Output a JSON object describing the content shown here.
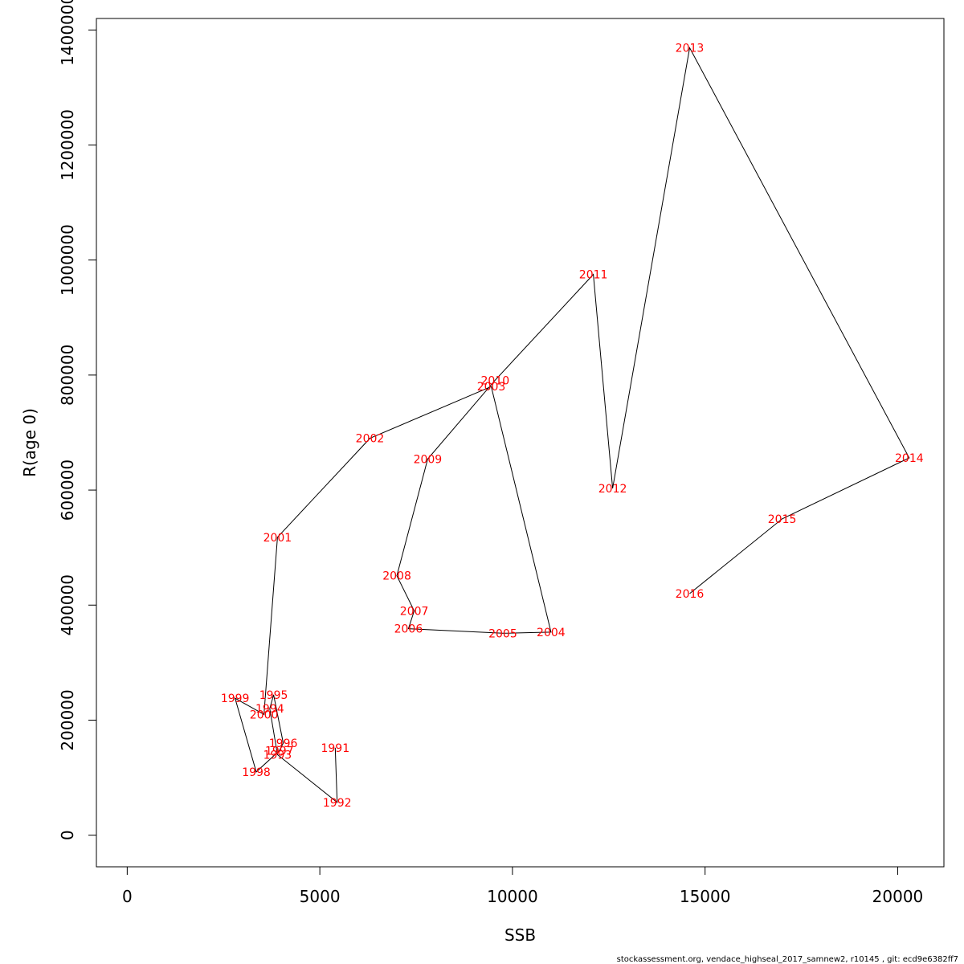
{
  "chart_data": {
    "type": "scatter",
    "xlabel": "SSB",
    "ylabel": "R(age 0)",
    "xlim": [
      -800,
      21200
    ],
    "ylim": [
      -55000,
      1420000
    ],
    "x_ticks": [
      0,
      5000,
      10000,
      15000,
      20000
    ],
    "y_ticks": [
      0,
      200000,
      400000,
      600000,
      800000,
      1000000,
      1200000,
      1400000
    ],
    "grid": false,
    "line_color": "#000000",
    "label_color": "#ff0000",
    "points": [
      {
        "year": "1991",
        "x": 5400,
        "y": 152000
      },
      {
        "year": "1992",
        "x": 5450,
        "y": 57000
      },
      {
        "year": "1993",
        "x": 3900,
        "y": 140000
      },
      {
        "year": "1994",
        "x": 3700,
        "y": 220000
      },
      {
        "year": "1995",
        "x": 3800,
        "y": 244000
      },
      {
        "year": "1996",
        "x": 4050,
        "y": 160000
      },
      {
        "year": "1997",
        "x": 3950,
        "y": 147000
      },
      {
        "year": "1998",
        "x": 3350,
        "y": 110000
      },
      {
        "year": "1999",
        "x": 2800,
        "y": 238000
      },
      {
        "year": "2000",
        "x": 3550,
        "y": 210000
      },
      {
        "year": "2001",
        "x": 3900,
        "y": 518000
      },
      {
        "year": "2002",
        "x": 6300,
        "y": 690000
      },
      {
        "year": "2003",
        "x": 9450,
        "y": 780000
      },
      {
        "year": "2004",
        "x": 11000,
        "y": 353000
      },
      {
        "year": "2005",
        "x": 9750,
        "y": 351000
      },
      {
        "year": "2006",
        "x": 7300,
        "y": 359000
      },
      {
        "year": "2007",
        "x": 7450,
        "y": 390000
      },
      {
        "year": "2008",
        "x": 7000,
        "y": 451000
      },
      {
        "year": "2009",
        "x": 7800,
        "y": 654000
      },
      {
        "year": "2010",
        "x": 9550,
        "y": 791000
      },
      {
        "year": "2011",
        "x": 12100,
        "y": 975000
      },
      {
        "year": "2012",
        "x": 12600,
        "y": 603000
      },
      {
        "year": "2013",
        "x": 14600,
        "y": 1369000
      },
      {
        "year": "2014",
        "x": 20300,
        "y": 656000
      },
      {
        "year": "2015",
        "x": 17000,
        "y": 550000
      },
      {
        "year": "2016",
        "x": 14600,
        "y": 420000
      }
    ]
  },
  "footer": "stockassessment.org, vendace_highseal_2017_samnew2, r10145 , git: ecd9e6382ff7"
}
